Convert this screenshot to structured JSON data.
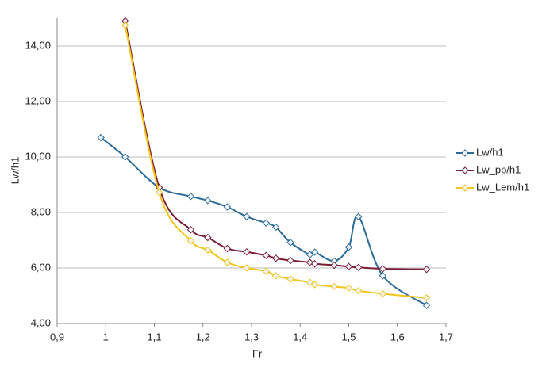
{
  "chart_data": {
    "type": "line",
    "xlabel": "Fr",
    "ylabel": "Lw/h1",
    "xlim": [
      0.9,
      1.7
    ],
    "xticks": [
      {
        "value": 0.9,
        "label": "0,9"
      },
      1,
      {
        "value": 1.1,
        "label": "1,1"
      },
      {
        "value": 1.2,
        "label": "1,2"
      },
      {
        "value": 1.3,
        "label": "1,3"
      },
      {
        "value": 1.4,
        "label": "1,4"
      },
      {
        "value": 1.5,
        "label": "1,5"
      },
      {
        "value": 1.6,
        "label": "1,6"
      },
      {
        "value": 1.7,
        "label": "1,7"
      }
    ],
    "ylim": [
      4,
      15
    ],
    "yticks": [
      {
        "value": 4,
        "label": "4,00"
      },
      {
        "value": 6,
        "label": "6,00"
      },
      {
        "value": 8,
        "label": "8,00"
      },
      {
        "value": 10,
        "label": "10,00"
      },
      {
        "value": 12,
        "label": "12,00"
      },
      {
        "value": 14,
        "label": "14,00"
      }
    ],
    "grid": true,
    "legend": "right",
    "series": [
      {
        "name": "Lw/h1",
        "color": "#2b6a99",
        "x": [
          0.99,
          1.04,
          1.11,
          1.175,
          1.21,
          1.25,
          1.29,
          1.33,
          1.35,
          1.38,
          1.42,
          1.43,
          1.47,
          1.5,
          1.52,
          1.57,
          1.66
        ],
        "values": [
          10.7,
          10.0,
          8.9,
          8.58,
          8.43,
          8.2,
          7.85,
          7.62,
          7.47,
          6.92,
          6.48,
          6.57,
          6.25,
          6.75,
          7.85,
          5.72,
          4.65
        ]
      },
      {
        "name": "Lw_pp/h1",
        "color": "#7b1c33",
        "x": [
          1.04,
          1.11,
          1.175,
          1.21,
          1.25,
          1.29,
          1.33,
          1.35,
          1.38,
          1.42,
          1.43,
          1.47,
          1.5,
          1.52,
          1.57,
          1.66
        ],
        "values": [
          14.9,
          8.9,
          7.38,
          7.1,
          6.7,
          6.58,
          6.45,
          6.35,
          6.27,
          6.2,
          6.15,
          6.1,
          6.05,
          6.02,
          5.97,
          5.95
        ]
      },
      {
        "name": "Lw_Lem/h1",
        "color": "#f2c51a",
        "x": [
          1.04,
          1.11,
          1.175,
          1.21,
          1.25,
          1.29,
          1.33,
          1.35,
          1.38,
          1.42,
          1.43,
          1.47,
          1.5,
          1.52,
          1.57,
          1.66
        ],
        "values": [
          14.75,
          8.72,
          6.98,
          6.65,
          6.2,
          6.0,
          5.88,
          5.72,
          5.6,
          5.48,
          5.4,
          5.33,
          5.28,
          5.18,
          5.07,
          4.92
        ]
      }
    ]
  }
}
